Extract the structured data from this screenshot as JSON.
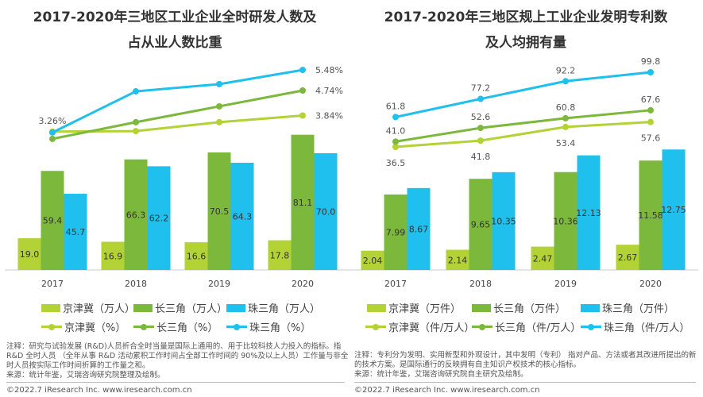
{
  "colors": {
    "jjj": "#b2d235",
    "csj": "#7cb83c",
    "zsj": "#1fbfee"
  },
  "chart_data": [
    {
      "type": "bar+line",
      "title_line1": "2017-2020年三地区工业企业全时研发人数及",
      "title_line2": "占从业人数比重",
      "categories": [
        "2017",
        "2018",
        "2019",
        "2020"
      ],
      "bar_series": [
        {
          "name": "京津冀（万人）",
          "values": [
            19.0,
            16.9,
            16.6,
            17.8
          ],
          "labels": [
            "19.0",
            "16.9",
            "16.6",
            "17.8"
          ]
        },
        {
          "name": "长三角（万人）",
          "values": [
            59.4,
            66.3,
            70.5,
            81.1
          ],
          "labels": [
            "59.4",
            "66.3",
            "70.5",
            "81.1"
          ]
        },
        {
          "name": "珠三角（万人）",
          "values": [
            45.7,
            62.2,
            64.3,
            70.0
          ],
          "labels": [
            "45.7",
            "62.2",
            "64.3",
            "70.0"
          ]
        }
      ],
      "line_series": [
        {
          "name": "京津冀（%）",
          "values": [
            3.26,
            3.28,
            3.6,
            3.84
          ],
          "labels": [
            "3.26%",
            "",
            "",
            "3.84%"
          ]
        },
        {
          "name": "长三角（%）",
          "values": [
            3.0,
            3.6,
            4.17,
            4.74
          ],
          "labels": [
            "",
            "",
            "",
            "4.74%"
          ]
        },
        {
          "name": "珠三角（%）",
          "values": [
            3.23,
            4.71,
            4.97,
            5.48
          ],
          "labels": [
            "",
            "",
            "",
            "5.48%"
          ]
        }
      ],
      "legend_position": "bottom",
      "grid": false
    },
    {
      "type": "bar+line",
      "title_line1": "2017-2020年三地区规上工业企业发明专利数",
      "title_line2": "及人均拥有量",
      "categories": [
        "2017",
        "2018",
        "2019",
        "2020"
      ],
      "bar_series": [
        {
          "name": "京津冀（万件）",
          "values": [
            2.04,
            2.14,
            2.47,
            2.67
          ],
          "labels": [
            "2.04",
            "2.14",
            "2.47",
            "2.67"
          ]
        },
        {
          "name": "长三角（万件）",
          "values": [
            7.99,
            9.65,
            10.36,
            11.58
          ],
          "labels": [
            "7.99",
            "9.65",
            "10.36",
            "11.58"
          ]
        },
        {
          "name": "珠三角（万件）",
          "values": [
            8.67,
            10.35,
            12.13,
            12.75
          ],
          "labels": [
            "8.67",
            "10.35",
            "12.13",
            "12.75"
          ]
        }
      ],
      "line_series": [
        {
          "name": "京津冀（件/万人）",
          "values": [
            36.5,
            41.8,
            53.4,
            57.6
          ],
          "labels": [
            "36.5",
            "41.8",
            "53.4",
            "57.6"
          ]
        },
        {
          "name": "长三角（件/万人）",
          "values": [
            41.0,
            52.6,
            60.8,
            67.6
          ],
          "labels": [
            "41.0",
            "52.6",
            "60.8",
            "67.6"
          ]
        },
        {
          "name": "珠三角（件/万人）",
          "values": [
            61.8,
            77.2,
            92.2,
            99.8
          ],
          "labels": [
            "61.8",
            "77.2",
            "92.2",
            "99.8"
          ]
        }
      ],
      "legend_position": "bottom",
      "grid": false
    }
  ],
  "notes": {
    "left": "注释：研究与试验发展 (R&D)人员折合全时当量是国际上通用的、用于比较科技人力投入的指标。指 R&D 全时人员 （全年从事 R&D 活动累积工作时间占全部工作时间的 90%及以上人员）工作量与非全时人员按实际工作时间折算的工作量之和。",
    "left_source": "来源：统计年鉴，艾瑞咨询研究院整理及绘制。",
    "right": "注释：专利分为发明、实用新型和外观设计，其中发明（专利） 指对产品、方法或者其改进所提出的新的技术方案。是国际通行的反映拥有自主知识产权技术的核心指标。",
    "right_source": "来源：统计年鉴，艾瑞咨询研究院自主研究及绘制。",
    "copyright": "©2022.7 iResearch Inc. www.iresearch.com.cn"
  }
}
